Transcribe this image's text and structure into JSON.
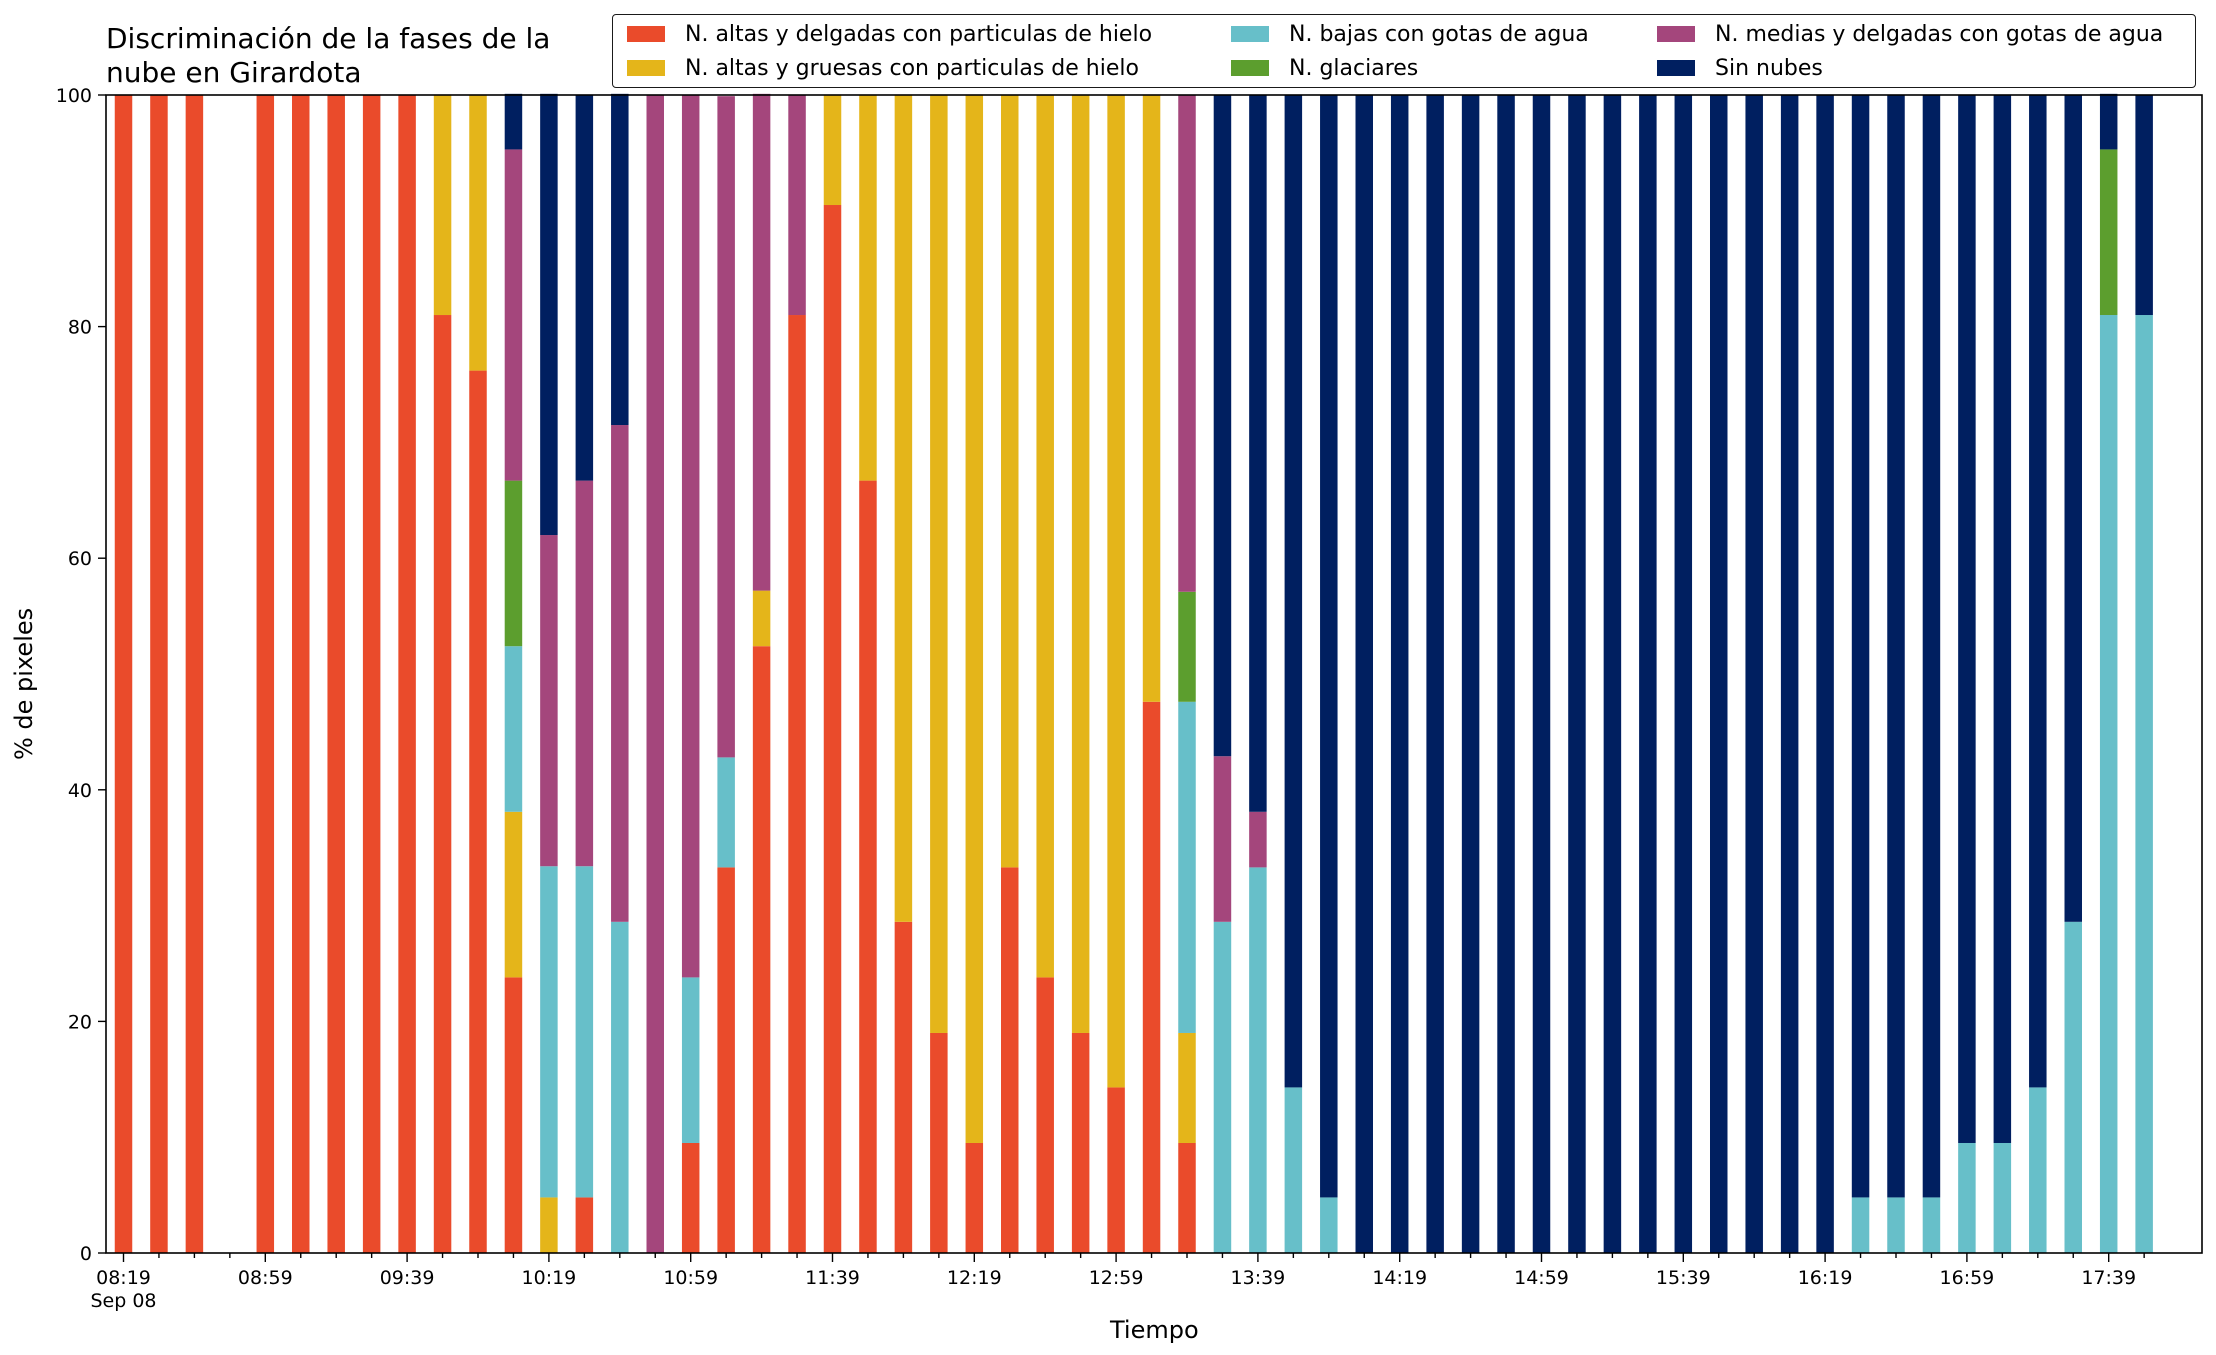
{
  "chart_data": {
    "type": "bar",
    "stacked": true,
    "title": "Discriminación de la fases de la\nnube en Girardota",
    "xlabel": "Tiempo",
    "ylabel": "% de pixeles",
    "ylim": [
      0,
      100
    ],
    "yticks": [
      0,
      20,
      40,
      60,
      80,
      100
    ],
    "xtick_labels": [
      "08:19\nSep 08",
      "08:59",
      "09:39",
      "10:19",
      "10:59",
      "11:39",
      "12:19",
      "12:59",
      "13:39",
      "14:19",
      "14:59",
      "15:39",
      "16:19",
      "16:59",
      "17:39"
    ],
    "legend_placement": "top",
    "categories": [
      "08:19",
      "08:29",
      "08:39",
      "08:49",
      "08:59",
      "09:09",
      "09:19",
      "09:29",
      "09:39",
      "09:49",
      "09:59",
      "10:09",
      "10:19",
      "10:29",
      "10:39",
      "10:49",
      "10:59",
      "11:09",
      "11:19",
      "11:29",
      "11:39",
      "11:49",
      "11:59",
      "12:09",
      "12:19",
      "12:29",
      "12:39",
      "12:49",
      "12:59",
      "13:09",
      "13:19",
      "13:29",
      "13:39",
      "13:49",
      "13:59",
      "14:09",
      "14:19",
      "14:29",
      "14:39",
      "14:49",
      "14:59",
      "15:09",
      "15:19",
      "15:29",
      "15:39",
      "15:49",
      "15:59",
      "16:09",
      "16:19",
      "16:29",
      "16:39",
      "16:49",
      "16:59",
      "17:09",
      "17:19",
      "17:29",
      "17:39",
      "17:49"
    ],
    "series": [
      {
        "name": "N. altas y delgadas con particulas de hielo",
        "color": "#ea4b2b",
        "values": [
          100,
          100,
          100,
          0,
          100,
          100,
          100,
          100,
          100,
          81,
          76.2,
          23.8,
          0,
          4.8,
          0,
          0,
          9.5,
          33.3,
          52.4,
          81,
          90.5,
          66.7,
          28.6,
          19,
          9.5,
          33.3,
          23.8,
          19,
          14.3,
          47.6,
          9.5,
          0,
          0,
          0,
          0,
          0,
          0,
          0,
          0,
          0,
          0,
          0,
          0,
          0,
          0,
          0,
          0,
          0,
          0,
          0,
          0,
          0,
          0,
          0,
          0,
          0,
          0,
          0
        ]
      },
      {
        "name": "N. altas y gruesas con particulas de hielo",
        "color": "#e4b51a",
        "values": [
          0,
          0,
          0,
          0,
          0,
          0,
          0,
          0,
          0,
          19,
          23.8,
          14.3,
          4.8,
          0,
          0,
          0,
          0,
          0,
          4.8,
          0,
          9.5,
          33.3,
          71.4,
          81,
          90.5,
          66.7,
          76.2,
          81,
          85.7,
          52.4,
          9.5,
          0,
          0,
          0,
          0,
          0,
          0,
          0,
          0,
          0,
          0,
          0,
          0,
          0,
          0,
          0,
          0,
          0,
          0,
          0,
          0,
          0,
          0,
          0,
          0,
          0,
          0,
          0
        ]
      },
      {
        "name": "N. bajas con gotas de agua",
        "color": "#67bfc9",
        "values": [
          0,
          0,
          0,
          0,
          0,
          0,
          0,
          0,
          0,
          0,
          0,
          14.3,
          28.6,
          28.6,
          28.6,
          0,
          14.3,
          9.5,
          0,
          0,
          0,
          0,
          0,
          0,
          0,
          0,
          0,
          0,
          0,
          0,
          28.6,
          28.6,
          33.3,
          14.3,
          4.8,
          0,
          0,
          0,
          0,
          0,
          0,
          0,
          0,
          0,
          0,
          0,
          0,
          0,
          0,
          4.8,
          4.8,
          4.8,
          9.5,
          9.5,
          14.3,
          28.6,
          81,
          81
        ]
      },
      {
        "name": "N. glaciares",
        "color": "#5c9e2e",
        "values": [
          0,
          0,
          0,
          0,
          0,
          0,
          0,
          0,
          0,
          0,
          0,
          14.3,
          0,
          0,
          0,
          0,
          0,
          0,
          0,
          0,
          0,
          0,
          0,
          0,
          0,
          0,
          0,
          0,
          0,
          0,
          9.5,
          0,
          0,
          0,
          0,
          0,
          0,
          0,
          0,
          0,
          0,
          0,
          0,
          0,
          0,
          0,
          0,
          0,
          0,
          0,
          0,
          0,
          0,
          0,
          0,
          0,
          14.3,
          0
        ]
      },
      {
        "name": "N. medias y delgadas con gotas de agua",
        "color": "#a4467c",
        "values": [
          0,
          0,
          0,
          0,
          0,
          0,
          0,
          0,
          0,
          0,
          0,
          28.6,
          28.6,
          33.3,
          42.9,
          100,
          76.2,
          57.1,
          42.9,
          19,
          0,
          0,
          0,
          0,
          0,
          0,
          0,
          0,
          0,
          0,
          42.9,
          14.3,
          4.8,
          0,
          0,
          0,
          0,
          0,
          0,
          0,
          0,
          0,
          0,
          0,
          0,
          0,
          0,
          0,
          0,
          0,
          0,
          0,
          0,
          0,
          0,
          0,
          0,
          0
        ]
      },
      {
        "name": "Sin nubes",
        "color": "#001f60",
        "values": [
          0,
          0,
          0,
          0,
          0,
          0,
          0,
          0,
          0,
          0,
          0,
          4.8,
          38.1,
          33.3,
          28.6,
          0,
          0,
          0,
          0,
          0,
          0,
          0,
          0,
          0,
          0,
          0,
          0,
          0,
          0,
          0,
          0,
          57.1,
          61.9,
          85.7,
          95.2,
          100,
          100,
          100,
          100,
          100,
          100,
          100,
          100,
          100,
          100,
          100,
          100,
          100,
          100,
          95.2,
          95.2,
          95.2,
          90.5,
          90.5,
          85.7,
          71.4,
          4.8,
          19
        ]
      }
    ]
  }
}
